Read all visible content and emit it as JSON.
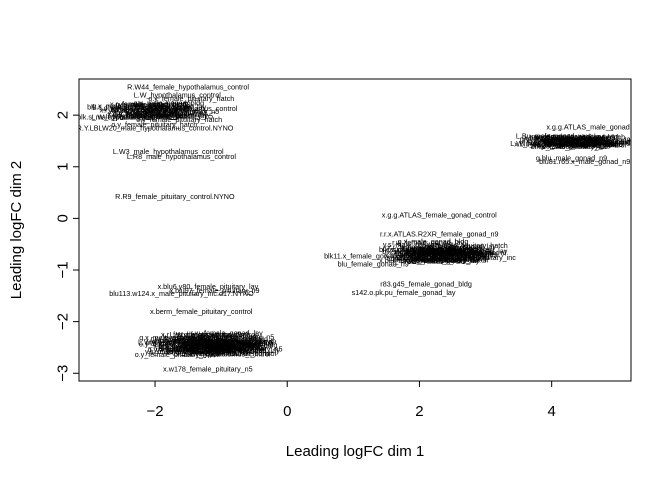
{
  "chart_data": {
    "type": "scatter",
    "xlabel": "Leading logFC dim 1",
    "ylabel": "Leading logFC dim 2",
    "xlim": [
      -3.15,
      5.2
    ],
    "ylim": [
      -3.15,
      2.7
    ],
    "xticks": [
      -2,
      0,
      2,
      4
    ],
    "yticks": [
      -3,
      -2,
      -1,
      0,
      1,
      2
    ],
    "grid": false,
    "labels": [
      {
        "text": "R.W44_female_hypothalamus_control",
        "x": -1.5,
        "y": 2.5
      },
      {
        "text": "R.Y.LBLW20_male_hypothalamus_control.NYNO",
        "x": -2.0,
        "y": 1.7
      },
      {
        "text": "L.W3_male_hypothalamus_control",
        "x": -1.8,
        "y": 1.25
      },
      {
        "text": "L.R8_male_hypothalamus_control",
        "x": -1.6,
        "y": 1.15
      },
      {
        "text": "R.R9_female_pituitary_control.NYNO",
        "x": -1.7,
        "y": 0.38
      },
      {
        "text": "x.g.g.ATLAS_female_gonad_control",
        "x": 2.3,
        "y": 0.02
      },
      {
        "text": "r.r.x.ATLAS.R2XR_female_gonad_n9",
        "x": 2.3,
        "y": -0.35
      },
      {
        "text": "blk11.x_female_gonad_lay",
        "x": 1.2,
        "y": -0.78
      },
      {
        "text": "blu_female_gonad_n9",
        "x": 1.3,
        "y": -0.93
      },
      {
        "text": "r83.g45_female_gonad_bldg",
        "x": 2.1,
        "y": -1.32
      },
      {
        "text": "s142.o.pk.pu_female_gonad_lay",
        "x": 1.76,
        "y": -1.48
      },
      {
        "text": "x.g.g.ATLAS_male_gonad",
        "x": 4.55,
        "y": 1.72
      },
      {
        "text": "L.Bu_male_gonad",
        "x": 3.9,
        "y": 1.55
      },
      {
        "text": "g.blu_male_gonad_n9",
        "x": 4.3,
        "y": 1.12
      },
      {
        "text": "blu81.r65.x_male_gonad_n9",
        "x": 4.5,
        "y": 1.05
      },
      {
        "text": "x.blu6.y80_female_pituitary_lay",
        "x": -1.2,
        "y": -1.37
      },
      {
        "text": "blu113.w124.x_male_pituitary_inc.d17.NYNO",
        "x": -1.6,
        "y": -1.5
      },
      {
        "text": "x.blu97_female_pituitary_n9",
        "x": -1.1,
        "y": -1.45
      },
      {
        "text": "x.berm_female_pituitary_control",
        "x": -1.3,
        "y": -1.85
      },
      {
        "text": "x.w178_female_pituitary_n5",
        "x": -1.2,
        "y": -2.97
      }
    ],
    "clusters": [
      {
        "name": "hypothalamus",
        "center": [
          -1.9,
          2.05
        ],
        "spread": [
          0.9,
          0.35
        ],
        "count": 30
      },
      {
        "name": "female gonad",
        "center": [
          2.4,
          -0.7
        ],
        "spread": [
          0.6,
          0.28
        ],
        "count": 45
      },
      {
        "name": "male gonad",
        "center": [
          4.4,
          1.45
        ],
        "spread": [
          0.55,
          0.14
        ],
        "count": 30
      },
      {
        "name": "pituitary",
        "center": [
          -1.1,
          -2.5
        ],
        "spread": [
          0.75,
          0.3
        ],
        "count": 60
      }
    ]
  }
}
